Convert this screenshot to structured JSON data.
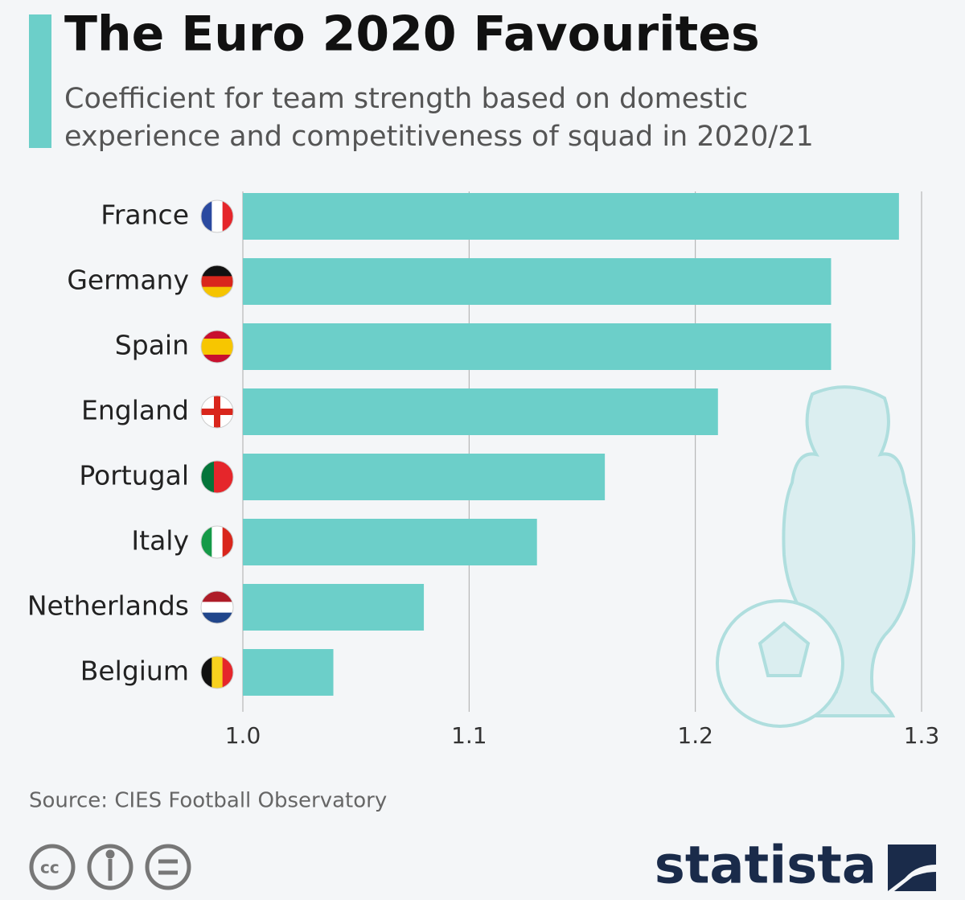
{
  "chart_data": {
    "type": "bar",
    "orientation": "horizontal",
    "title": "The Euro 2020 Favourites",
    "subtitle": [
      "Coefficient for team strength based on domestic",
      "experience and competitiveness of squad in 2020/21"
    ],
    "categories": [
      "France",
      "Germany",
      "Spain",
      "England",
      "Portugal",
      "Italy",
      "Netherlands",
      "Belgium"
    ],
    "values": [
      1.29,
      1.26,
      1.26,
      1.21,
      1.16,
      1.13,
      1.08,
      1.04
    ],
    "color": "#6ccfc9",
    "xlim": [
      1.0,
      1.3
    ],
    "xticks": [
      {
        "value": 1.0,
        "label": "1.0"
      },
      1.1,
      1.2,
      1.3
    ],
    "grid": true,
    "source": "Source: CIES Football Observatory",
    "brand": "statista"
  }
}
